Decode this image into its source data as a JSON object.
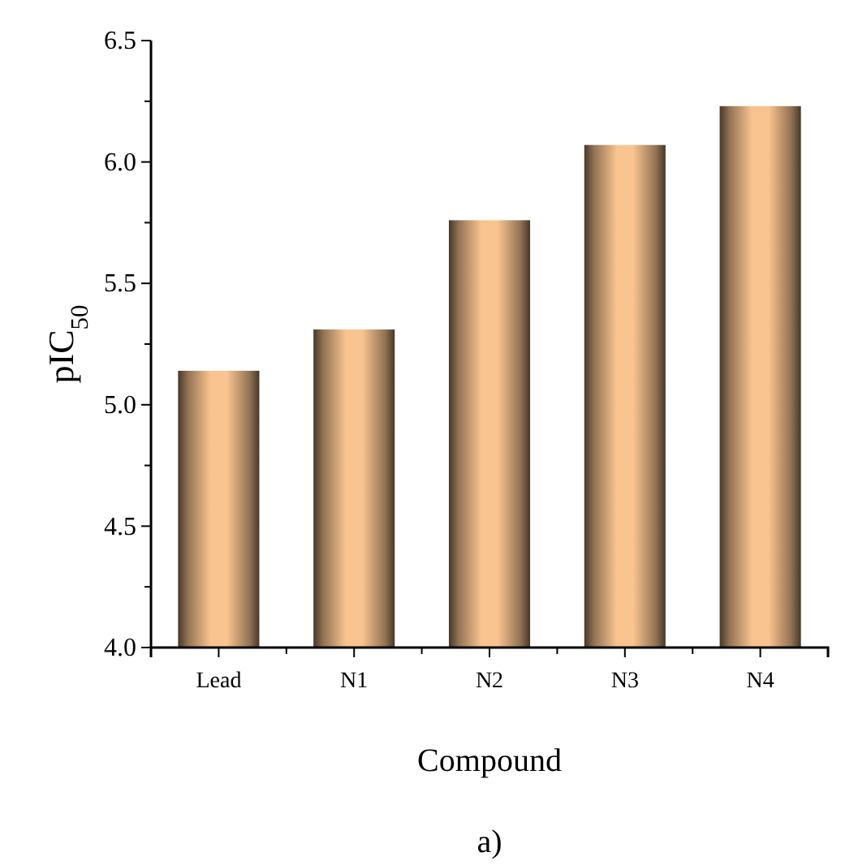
{
  "chart_data": {
    "type": "bar",
    "xlabel": "Compound",
    "ylabel": "pIC$_{50}$",
    "categories": [
      "Lead",
      "N1",
      "N2",
      "N3",
      "N4"
    ],
    "values": [
      5.14,
      5.31,
      5.76,
      6.07,
      6.23
    ],
    "color": "#f9c48f",
    "ylim": [
      4.0,
      6.5
    ],
    "yticks": [
      {
        "value": 4.0,
        "label": "4.0"
      },
      {
        "value": 4.25,
        "label": null
      },
      {
        "value": 4.5,
        "label": "4.5"
      },
      {
        "value": 4.75,
        "label": null
      },
      {
        "value": 5.0,
        "label": "5.0"
      },
      {
        "value": 5.25,
        "label": null
      },
      {
        "value": 5.5,
        "label": "5.5"
      },
      {
        "value": 5.75,
        "label": null
      },
      {
        "value": 6.0,
        "label": "6.0"
      },
      {
        "value": 6.25,
        "label": null
      },
      {
        "value": 6.5,
        "label": "6.5"
      }
    ],
    "annotations": [
      "a)"
    ]
  }
}
